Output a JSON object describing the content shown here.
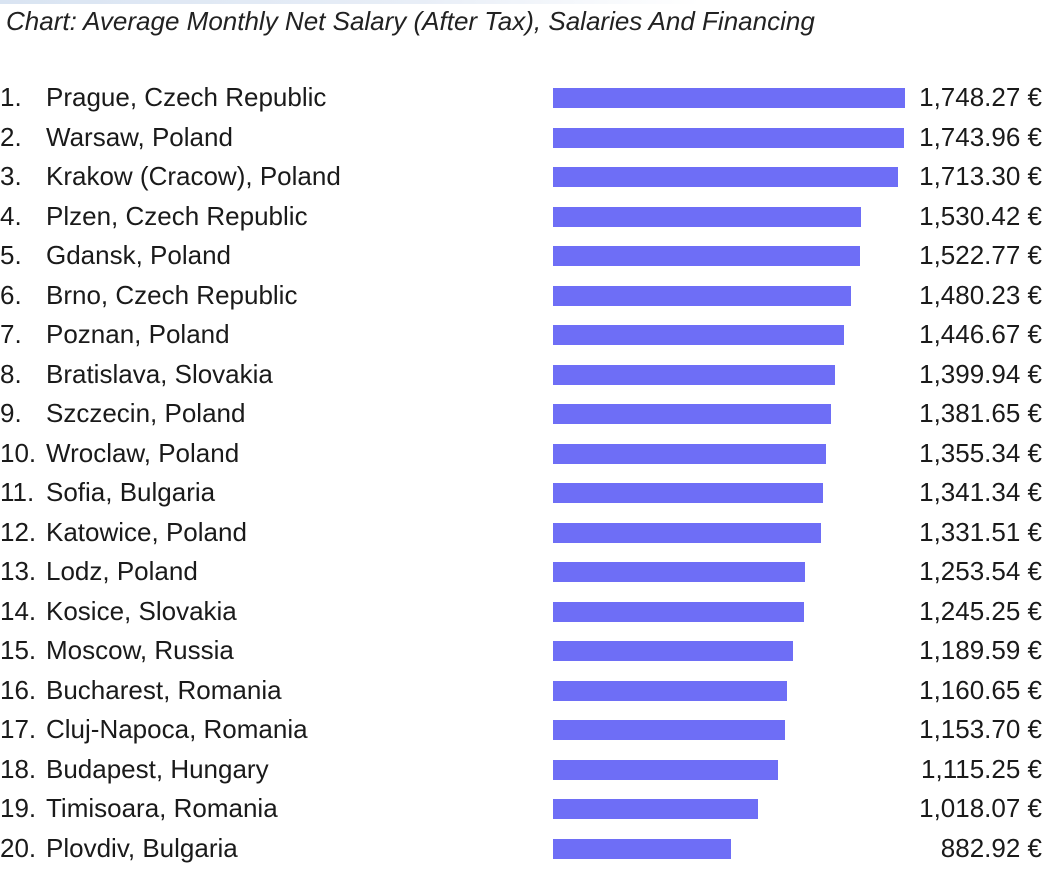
{
  "title": "Chart: Average Monthly Net Salary (After Tax), Salaries And Financing",
  "accent_color": "#6e6ef6",
  "chart_data": {
    "type": "bar",
    "orientation": "horizontal",
    "title": "Chart: Average Monthly Net Salary (After Tax), Salaries And Financing",
    "unit": "€",
    "categories": [
      "Prague, Czech Republic",
      "Warsaw, Poland",
      "Krakow (Cracow), Poland",
      "Plzen, Czech Republic",
      "Gdansk, Poland",
      "Brno, Czech Republic",
      "Poznan, Poland",
      "Bratislava, Slovakia",
      "Szczecin, Poland",
      "Wroclaw, Poland",
      "Sofia, Bulgaria",
      "Katowice, Poland",
      "Lodz, Poland",
      "Kosice, Slovakia",
      "Moscow, Russia",
      "Bucharest, Romania",
      "Cluj-Napoca, Romania",
      "Budapest, Hungary",
      "Timisoara, Romania",
      "Plovdiv, Bulgaria"
    ],
    "ranks": [
      "1.",
      "2.",
      "3.",
      "4.",
      "5.",
      "6.",
      "7.",
      "8.",
      "9.",
      "10.",
      "11.",
      "12.",
      "13.",
      "14.",
      "15.",
      "16.",
      "17.",
      "18.",
      "19.",
      "20."
    ],
    "values": [
      1748.27,
      1743.96,
      1713.3,
      1530.42,
      1522.77,
      1480.23,
      1446.67,
      1399.94,
      1381.65,
      1355.34,
      1341.34,
      1331.51,
      1253.54,
      1245.25,
      1189.59,
      1160.65,
      1153.7,
      1115.25,
      1018.07,
      882.92
    ],
    "value_labels": [
      "1,748.27 €",
      "1,743.96 €",
      "1,713.30 €",
      "1,530.42 €",
      "1,522.77 €",
      "1,480.23 €",
      "1,446.67 €",
      "1,399.94 €",
      "1,381.65 €",
      "1,355.34 €",
      "1,341.34 €",
      "1,331.51 €",
      "1,253.54 €",
      "1,245.25 €",
      "1,189.59 €",
      "1,160.65 €",
      "1,153.70 €",
      "1,115.25 €",
      "1,018.07 €",
      "882.92 €"
    ],
    "xlim": [
      0,
      1748.27
    ],
    "grid": false,
    "legend": "none"
  }
}
